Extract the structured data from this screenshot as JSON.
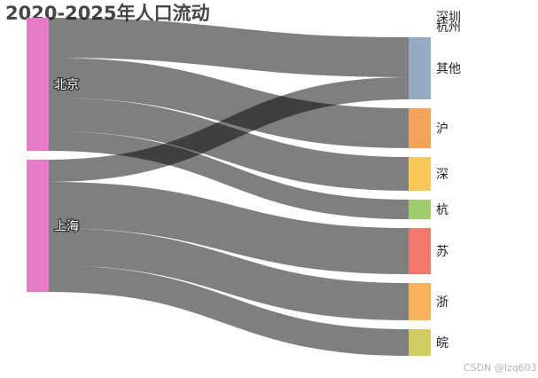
{
  "chart_data": {
    "type": "sankey",
    "title": "2020-2025年人口流动",
    "sources": [
      {
        "name": "北京",
        "color": "#e77bc8"
      },
      {
        "name": "上海",
        "color": "#e77bc8"
      }
    ],
    "targets": [
      {
        "name": "深圳",
        "color": "#94abc4"
      },
      {
        "name": "杭州",
        "color": "#94abc4"
      },
      {
        "name": "其他",
        "color": "#94abc4"
      },
      {
        "name": "沪",
        "color": "#f3a35c"
      },
      {
        "name": "深",
        "color": "#fac858"
      },
      {
        "name": "杭",
        "color": "#9fcc6d"
      },
      {
        "name": "苏",
        "color": "#ef7a6b"
      },
      {
        "name": "浙",
        "color": "#f8b25f"
      },
      {
        "name": "皖",
        "color": "#d2cb62"
      }
    ],
    "links": [
      {
        "source": "北京",
        "target": "其他",
        "value": 45
      },
      {
        "source": "北京",
        "target": "沪",
        "value": 45
      },
      {
        "source": "北京",
        "target": "深",
        "value": 38
      },
      {
        "source": "北京",
        "target": "杭",
        "value": 22
      },
      {
        "source": "上海",
        "target": "其他",
        "value": 25
      },
      {
        "source": "上海",
        "target": "苏",
        "value": 52
      },
      {
        "source": "上海",
        "target": "浙",
        "value": 42
      },
      {
        "source": "上海",
        "target": "皖",
        "value": 30
      }
    ],
    "link_color": "#000000",
    "link_opacity": 0.5
  },
  "watermark": "CSDN @lzq603"
}
